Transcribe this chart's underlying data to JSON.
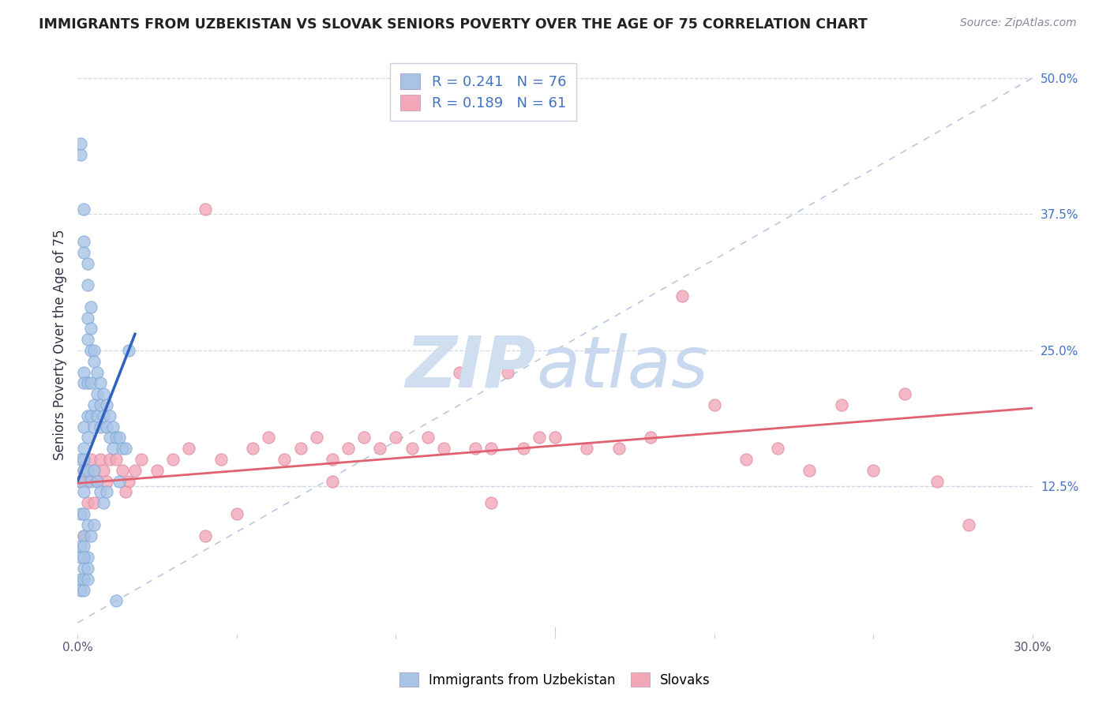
{
  "title": "IMMIGRANTS FROM UZBEKISTAN VS SLOVAK SENIORS POVERTY OVER THE AGE OF 75 CORRELATION CHART",
  "source": "Source: ZipAtlas.com",
  "ylabel": "Seniors Poverty Over the Age of 75",
  "xlim": [
    0.0,
    0.3
  ],
  "ylim": [
    -0.01,
    0.52
  ],
  "ytick_labels_right": [
    "12.5%",
    "25.0%",
    "37.5%",
    "50.0%"
  ],
  "yticks_right": [
    0.125,
    0.25,
    0.375,
    0.5
  ],
  "blue_color": "#a8c4e5",
  "pink_color": "#f2a8b8",
  "blue_line_color": "#3060c0",
  "pink_line_color": "#e06070",
  "ref_line_color": "#b8c8e0",
  "watermark_color": "#d0dff0",
  "legend_blue_label": "Immigrants from Uzbekistan",
  "legend_pink_label": "Slovaks",
  "grid_color": "#d0d8e8",
  "background_color": "#ffffff",
  "title_color": "#222222",
  "source_color": "#888899",
  "ylabel_color": "#333344",
  "tick_color": "#4472c4",
  "blue_scatter_x": [
    0.001,
    0.001,
    0.001,
    0.001,
    0.001,
    0.002,
    0.002,
    0.002,
    0.002,
    0.002,
    0.002,
    0.002,
    0.002,
    0.002,
    0.002,
    0.003,
    0.003,
    0.003,
    0.003,
    0.003,
    0.003,
    0.003,
    0.004,
    0.004,
    0.004,
    0.004,
    0.004,
    0.005,
    0.005,
    0.005,
    0.005,
    0.006,
    0.006,
    0.006,
    0.007,
    0.007,
    0.007,
    0.008,
    0.008,
    0.009,
    0.009,
    0.01,
    0.01,
    0.011,
    0.011,
    0.012,
    0.013,
    0.014,
    0.015,
    0.016,
    0.001,
    0.002,
    0.002,
    0.003,
    0.003,
    0.004,
    0.004,
    0.005,
    0.005,
    0.006,
    0.007,
    0.008,
    0.009,
    0.001,
    0.002,
    0.003,
    0.002,
    0.001,
    0.002,
    0.003,
    0.012,
    0.001,
    0.002,
    0.003,
    0.002,
    0.013
  ],
  "blue_scatter_y": [
    0.43,
    0.44,
    0.13,
    0.1,
    0.07,
    0.38,
    0.35,
    0.34,
    0.23,
    0.22,
    0.18,
    0.16,
    0.14,
    0.12,
    0.1,
    0.33,
    0.31,
    0.28,
    0.26,
    0.22,
    0.19,
    0.17,
    0.29,
    0.27,
    0.25,
    0.22,
    0.19,
    0.25,
    0.24,
    0.2,
    0.18,
    0.23,
    0.21,
    0.19,
    0.22,
    0.2,
    0.18,
    0.21,
    0.19,
    0.2,
    0.18,
    0.19,
    0.17,
    0.18,
    0.16,
    0.17,
    0.17,
    0.16,
    0.16,
    0.25,
    0.15,
    0.15,
    0.08,
    0.14,
    0.09,
    0.13,
    0.08,
    0.14,
    0.09,
    0.13,
    0.12,
    0.11,
    0.12,
    0.04,
    0.05,
    0.06,
    0.04,
    0.03,
    0.03,
    0.04,
    0.02,
    0.06,
    0.07,
    0.05,
    0.06,
    0.13
  ],
  "pink_scatter_x": [
    0.001,
    0.002,
    0.003,
    0.004,
    0.005,
    0.006,
    0.007,
    0.008,
    0.009,
    0.01,
    0.012,
    0.014,
    0.016,
    0.018,
    0.02,
    0.025,
    0.03,
    0.035,
    0.04,
    0.045,
    0.05,
    0.055,
    0.06,
    0.065,
    0.07,
    0.075,
    0.08,
    0.085,
    0.09,
    0.095,
    0.1,
    0.105,
    0.11,
    0.115,
    0.12,
    0.125,
    0.13,
    0.135,
    0.14,
    0.145,
    0.15,
    0.16,
    0.17,
    0.18,
    0.19,
    0.2,
    0.21,
    0.22,
    0.23,
    0.24,
    0.25,
    0.26,
    0.27,
    0.28,
    0.002,
    0.003,
    0.005,
    0.015,
    0.04,
    0.08,
    0.13
  ],
  "pink_scatter_y": [
    0.13,
    0.14,
    0.13,
    0.15,
    0.14,
    0.13,
    0.15,
    0.14,
    0.13,
    0.15,
    0.15,
    0.14,
    0.13,
    0.14,
    0.15,
    0.14,
    0.15,
    0.16,
    0.38,
    0.15,
    0.1,
    0.16,
    0.17,
    0.15,
    0.16,
    0.17,
    0.15,
    0.16,
    0.17,
    0.16,
    0.17,
    0.16,
    0.17,
    0.16,
    0.23,
    0.16,
    0.16,
    0.23,
    0.16,
    0.17,
    0.17,
    0.16,
    0.16,
    0.17,
    0.3,
    0.2,
    0.15,
    0.16,
    0.14,
    0.2,
    0.14,
    0.21,
    0.13,
    0.09,
    0.08,
    0.11,
    0.11,
    0.12,
    0.08,
    0.13,
    0.11
  ]
}
